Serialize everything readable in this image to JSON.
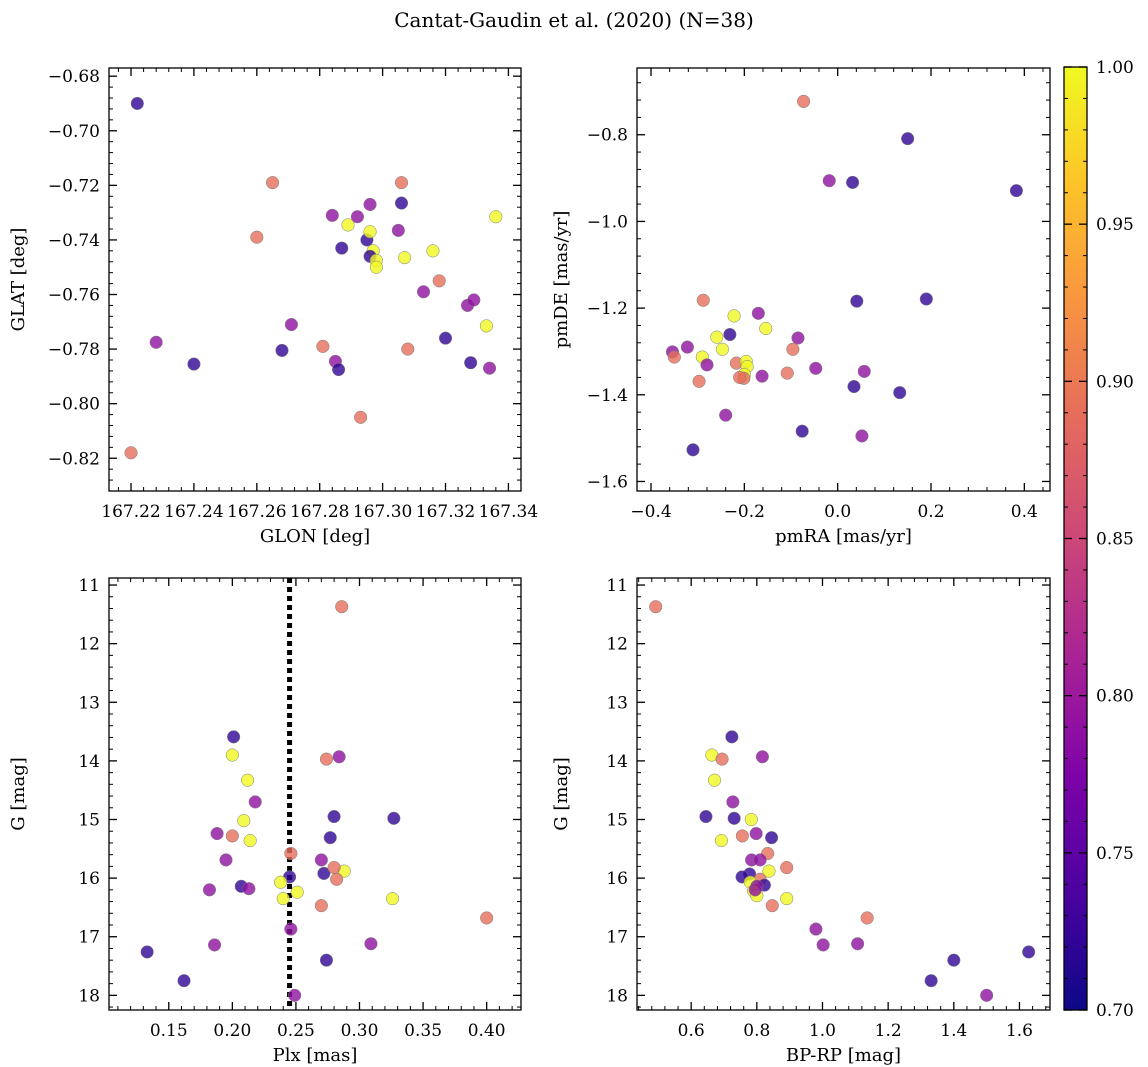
{
  "title": "Cantat-Gaudin et al. (2020) (N=38)",
  "colorbar": {
    "ticks": [
      "0.70",
      "0.75",
      "0.80",
      "0.85",
      "0.90",
      "0.95",
      "1.00"
    ],
    "range": [
      0.7,
      1.0
    ],
    "colormap": "plasma"
  },
  "chart_data": [
    {
      "type": "scatter",
      "id": "glon_glat",
      "xlabel": "GLON [deg]",
      "ylabel": "GLAT [deg]",
      "xlim": [
        167.213,
        167.344
      ],
      "ylim": [
        -0.832,
        -0.677
      ],
      "y_inverted": false,
      "xticks": [
        167.22,
        167.24,
        167.26,
        167.28,
        167.3,
        167.32,
        167.34
      ],
      "xtick_labels": [
        "167.22",
        "167.24",
        "167.26",
        "167.28",
        "167.30",
        "167.32",
        "167.34"
      ],
      "yticks": [
        -0.82,
        -0.8,
        -0.78,
        -0.76,
        -0.74,
        -0.72,
        -0.7,
        -0.68
      ],
      "ytick_labels": [
        "−0.82",
        "−0.80",
        "−0.78",
        "−0.76",
        "−0.74",
        "−0.72",
        "−0.70",
        "−0.68"
      ],
      "points": [
        [
          167.222,
          -0.69,
          0.72
        ],
        [
          167.228,
          -0.7775,
          0.79
        ],
        [
          167.24,
          -0.7855,
          0.72
        ],
        [
          167.22,
          -0.818,
          0.89
        ],
        [
          167.265,
          -0.719,
          0.89
        ],
        [
          167.26,
          -0.739,
          0.89
        ],
        [
          167.268,
          -0.7805,
          0.72
        ],
        [
          167.271,
          -0.771,
          0.79
        ],
        [
          167.281,
          -0.779,
          0.89
        ],
        [
          167.285,
          -0.7845,
          0.79
        ],
        [
          167.286,
          -0.7875,
          0.72
        ],
        [
          167.284,
          -0.731,
          0.79
        ],
        [
          167.292,
          -0.7315,
          0.79
        ],
        [
          167.296,
          -0.727,
          0.79
        ],
        [
          167.289,
          -0.7345,
          1.0
        ],
        [
          167.295,
          -0.74,
          0.72
        ],
        [
          167.287,
          -0.743,
          0.72
        ],
        [
          167.296,
          -0.737,
          1.0
        ],
        [
          167.297,
          -0.744,
          1.0
        ],
        [
          167.296,
          -0.746,
          0.72
        ],
        [
          167.298,
          -0.7475,
          1.0
        ],
        [
          167.298,
          -0.75,
          1.0
        ],
        [
          167.305,
          -0.7365,
          0.79
        ],
        [
          167.306,
          -0.7265,
          0.72
        ],
        [
          167.306,
          -0.719,
          0.89
        ],
        [
          167.307,
          -0.7465,
          1.0
        ],
        [
          167.308,
          -0.78,
          0.89
        ],
        [
          167.293,
          -0.805,
          0.89
        ],
        [
          167.313,
          -0.759,
          0.79
        ],
        [
          167.316,
          -0.744,
          1.0
        ],
        [
          167.318,
          -0.755,
          0.89
        ],
        [
          167.32,
          -0.776,
          0.72
        ],
        [
          167.327,
          -0.764,
          0.79
        ],
        [
          167.328,
          -0.785,
          0.72
        ],
        [
          167.329,
          -0.762,
          0.79
        ],
        [
          167.333,
          -0.7715,
          1.0
        ],
        [
          167.334,
          -0.787,
          0.79
        ],
        [
          167.336,
          -0.7315,
          1.0
        ]
      ]
    },
    {
      "type": "scatter",
      "id": "pmra_pmde",
      "xlabel": "pmRA [mas/yr]",
      "ylabel": "pmDE [mas/yr]",
      "xlim": [
        -0.43,
        0.455
      ],
      "ylim": [
        -1.622,
        -0.646
      ],
      "y_inverted": false,
      "xticks": [
        -0.4,
        -0.2,
        0.0,
        0.2,
        0.4
      ],
      "xtick_labels": [
        "−0.4",
        "−0.2",
        "0.0",
        "0.2",
        "0.4"
      ],
      "yticks": [
        -1.6,
        -1.4,
        -1.2,
        -1.0,
        -0.8
      ],
      "ytick_labels": [
        "−1.6",
        "−1.4",
        "−1.2",
        "−1.0",
        "−0.8"
      ],
      "points": [
        [
          -0.073,
          -0.723,
          0.89
        ],
        [
          0.15,
          -0.809,
          0.72
        ],
        [
          -0.018,
          -0.906,
          0.79
        ],
        [
          0.032,
          -0.91,
          0.72
        ],
        [
          0.383,
          -0.929,
          0.72
        ],
        [
          0.041,
          -1.184,
          0.72
        ],
        [
          0.19,
          -1.179,
          0.72
        ],
        [
          -0.288,
          -1.182,
          0.89
        ],
        [
          -0.222,
          -1.218,
          1.0
        ],
        [
          -0.17,
          -1.212,
          0.79
        ],
        [
          -0.154,
          -1.247,
          1.0
        ],
        [
          -0.259,
          -1.267,
          1.0
        ],
        [
          -0.231,
          -1.261,
          0.72
        ],
        [
          -0.085,
          -1.269,
          0.79
        ],
        [
          -0.322,
          -1.29,
          0.79
        ],
        [
          -0.247,
          -1.295,
          1.0
        ],
        [
          -0.096,
          -1.295,
          0.89
        ],
        [
          -0.354,
          -1.301,
          0.79
        ],
        [
          -0.35,
          -1.313,
          0.89
        ],
        [
          -0.29,
          -1.313,
          1.0
        ],
        [
          -0.28,
          -1.331,
          0.79
        ],
        [
          -0.217,
          -1.327,
          0.89
        ],
        [
          -0.196,
          -1.323,
          1.0
        ],
        [
          -0.194,
          -1.335,
          1.0
        ],
        [
          -0.047,
          -1.339,
          0.79
        ],
        [
          0.057,
          -1.346,
          0.79
        ],
        [
          -0.108,
          -1.35,
          0.89
        ],
        [
          -0.162,
          -1.357,
          0.79
        ],
        [
          -0.2,
          -1.353,
          1.0
        ],
        [
          -0.201,
          -1.362,
          0.89
        ],
        [
          -0.297,
          -1.369,
          0.89
        ],
        [
          0.035,
          -1.381,
          0.72
        ],
        [
          0.133,
          -1.395,
          0.72
        ],
        [
          -0.24,
          -1.447,
          0.79
        ],
        [
          -0.076,
          -1.484,
          0.72
        ],
        [
          0.052,
          -1.495,
          0.79
        ],
        [
          -0.31,
          -1.527,
          0.72
        ],
        [
          -0.21,
          -1.36,
          0.89
        ]
      ]
    },
    {
      "type": "scatter",
      "id": "plx_g",
      "xlabel": "Plx [mas]",
      "ylabel": "G [mag]",
      "xlim": [
        0.103,
        0.427
      ],
      "ylim": [
        18.25,
        10.88
      ],
      "y_inverted": true,
      "vline": {
        "x": 0.245,
        "style": "dotted"
      },
      "xticks": [
        0.15,
        0.2,
        0.25,
        0.3,
        0.35,
        0.4
      ],
      "xtick_labels": [
        "0.15",
        "0.20",
        "0.25",
        "0.30",
        "0.35",
        "0.40"
      ],
      "yticks": [
        11,
        12,
        13,
        14,
        15,
        16,
        17,
        18
      ],
      "ytick_labels": [
        "11",
        "12",
        "13",
        "14",
        "15",
        "16",
        "17",
        "18"
      ],
      "points": [
        [
          0.286,
          11.37,
          0.89
        ],
        [
          0.201,
          13.59,
          0.72
        ],
        [
          0.2,
          13.9,
          1.0
        ],
        [
          0.284,
          13.93,
          0.79
        ],
        [
          0.274,
          13.97,
          0.89
        ],
        [
          0.212,
          14.33,
          1.0
        ],
        [
          0.218,
          14.7,
          0.79
        ],
        [
          0.28,
          14.95,
          0.72
        ],
        [
          0.327,
          14.98,
          0.72
        ],
        [
          0.209,
          15.02,
          1.0
        ],
        [
          0.188,
          15.24,
          0.79
        ],
        [
          0.2,
          15.28,
          0.89
        ],
        [
          0.277,
          15.31,
          0.72
        ],
        [
          0.214,
          15.36,
          1.0
        ],
        [
          0.246,
          15.58,
          0.89
        ],
        [
          0.195,
          15.69,
          0.79
        ],
        [
          0.27,
          15.69,
          0.79
        ],
        [
          0.272,
          15.92,
          0.72
        ],
        [
          0.288,
          15.88,
          1.0
        ],
        [
          0.28,
          15.82,
          0.89
        ],
        [
          0.245,
          15.98,
          0.72
        ],
        [
          0.282,
          16.02,
          0.89
        ],
        [
          0.238,
          16.07,
          1.0
        ],
        [
          0.207,
          16.14,
          0.72
        ],
        [
          0.213,
          16.18,
          0.79
        ],
        [
          0.182,
          16.2,
          0.79
        ],
        [
          0.251,
          16.24,
          1.0
        ],
        [
          0.24,
          16.35,
          1.0
        ],
        [
          0.326,
          16.35,
          1.0
        ],
        [
          0.27,
          16.47,
          0.89
        ],
        [
          0.4,
          16.68,
          0.89
        ],
        [
          0.246,
          16.87,
          0.79
        ],
        [
          0.309,
          17.12,
          0.79
        ],
        [
          0.186,
          17.14,
          0.79
        ],
        [
          0.133,
          17.26,
          0.72
        ],
        [
          0.274,
          17.4,
          0.72
        ],
        [
          0.162,
          17.75,
          0.72
        ],
        [
          0.249,
          18.0,
          0.79
        ]
      ]
    },
    {
      "type": "scatter",
      "id": "bprp_g",
      "xlabel": "BP-RP [mag]",
      "ylabel": "G [mag]",
      "xlim": [
        0.435,
        1.693
      ],
      "ylim": [
        18.25,
        10.88
      ],
      "y_inverted": true,
      "xticks": [
        0.6,
        0.8,
        1.0,
        1.2,
        1.4,
        1.6
      ],
      "xtick_labels": [
        "0.6",
        "0.8",
        "1.0",
        "1.2",
        "1.4",
        "1.6"
      ],
      "yticks": [
        11,
        12,
        13,
        14,
        15,
        16,
        17,
        18
      ],
      "ytick_labels": [
        "11",
        "12",
        "13",
        "14",
        "15",
        "16",
        "17",
        "18"
      ],
      "points": [
        [
          0.492,
          11.37,
          0.89
        ],
        [
          0.724,
          13.59,
          0.72
        ],
        [
          0.663,
          13.9,
          1.0
        ],
        [
          0.694,
          13.97,
          0.89
        ],
        [
          0.817,
          13.93,
          0.79
        ],
        [
          0.671,
          14.33,
          1.0
        ],
        [
          0.727,
          14.7,
          0.79
        ],
        [
          0.645,
          14.95,
          0.72
        ],
        [
          0.731,
          14.98,
          0.72
        ],
        [
          0.783,
          15.0,
          1.0
        ],
        [
          0.798,
          15.24,
          0.79
        ],
        [
          0.756,
          15.28,
          0.89
        ],
        [
          0.845,
          15.31,
          0.72
        ],
        [
          0.692,
          15.36,
          1.0
        ],
        [
          0.833,
          15.58,
          0.89
        ],
        [
          0.784,
          15.69,
          0.79
        ],
        [
          0.81,
          15.69,
          0.79
        ],
        [
          0.891,
          15.82,
          0.89
        ],
        [
          0.837,
          15.88,
          1.0
        ],
        [
          0.778,
          15.93,
          0.72
        ],
        [
          0.755,
          15.98,
          0.72
        ],
        [
          0.81,
          16.02,
          0.89
        ],
        [
          0.78,
          16.07,
          1.0
        ],
        [
          0.823,
          16.12,
          0.72
        ],
        [
          0.8,
          16.14,
          0.79
        ],
        [
          0.79,
          16.22,
          1.0
        ],
        [
          0.8,
          16.3,
          1.0
        ],
        [
          0.891,
          16.35,
          1.0
        ],
        [
          0.847,
          16.47,
          0.89
        ],
        [
          1.136,
          16.68,
          0.89
        ],
        [
          0.98,
          16.87,
          0.79
        ],
        [
          1.107,
          17.12,
          0.79
        ],
        [
          1.002,
          17.14,
          0.79
        ],
        [
          1.628,
          17.26,
          0.72
        ],
        [
          1.4,
          17.4,
          0.72
        ],
        [
          1.331,
          17.75,
          0.72
        ],
        [
          1.5,
          18.0,
          0.79
        ],
        [
          0.795,
          16.2,
          0.79
        ]
      ]
    }
  ]
}
